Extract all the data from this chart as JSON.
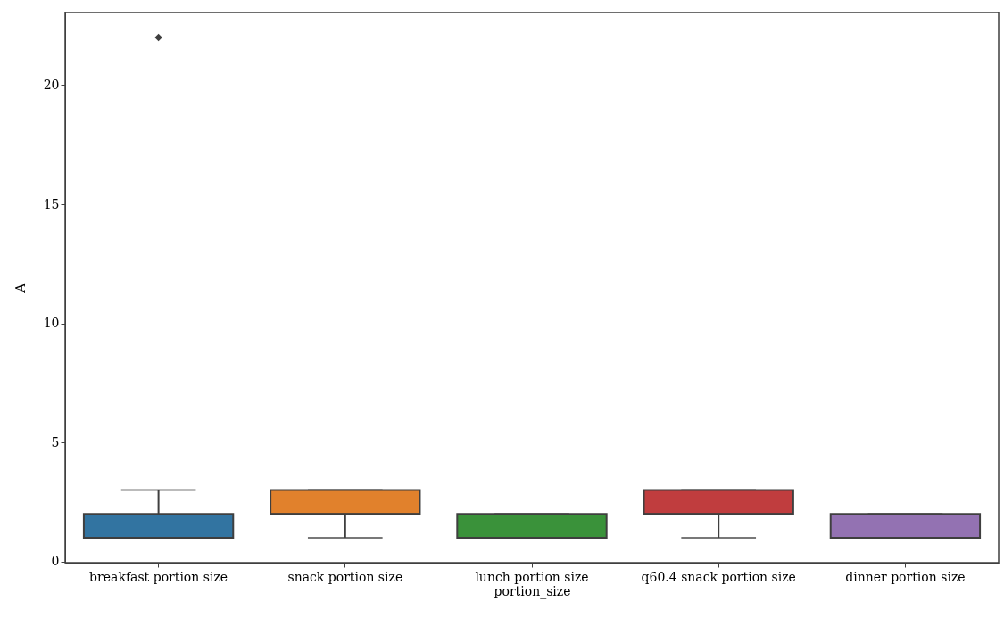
{
  "chart_data": {
    "type": "box",
    "xlabel": "portion_size",
    "ylabel": "A",
    "categories": [
      "breakfast portion size",
      "snack portion size",
      "lunch portion size",
      "q60.4 snack portion size",
      "dinner portion size"
    ],
    "colors": [
      "#3274a1",
      "#e1812c",
      "#3a923a",
      "#c03d3e",
      "#9372b2"
    ],
    "boxes": [
      {
        "low": 1,
        "q1": 1,
        "median": 1,
        "q3": 2,
        "high": 3,
        "outliers": [
          22
        ]
      },
      {
        "low": 1,
        "q1": 2,
        "median": 2,
        "q3": 3,
        "high": 3
      },
      {
        "low": 1,
        "q1": 1,
        "median": 1,
        "q3": 2,
        "high": 2
      },
      {
        "low": 1,
        "q1": 2,
        "median": 2,
        "q3": 3,
        "high": 3
      },
      {
        "low": 1,
        "q1": 1,
        "median": 1,
        "q3": 2,
        "high": 2
      }
    ],
    "ylim": [
      -0.05,
      23.05
    ],
    "yticks": [
      0,
      5,
      10,
      15,
      20
    ],
    "grid": false,
    "marker": "diamond"
  }
}
